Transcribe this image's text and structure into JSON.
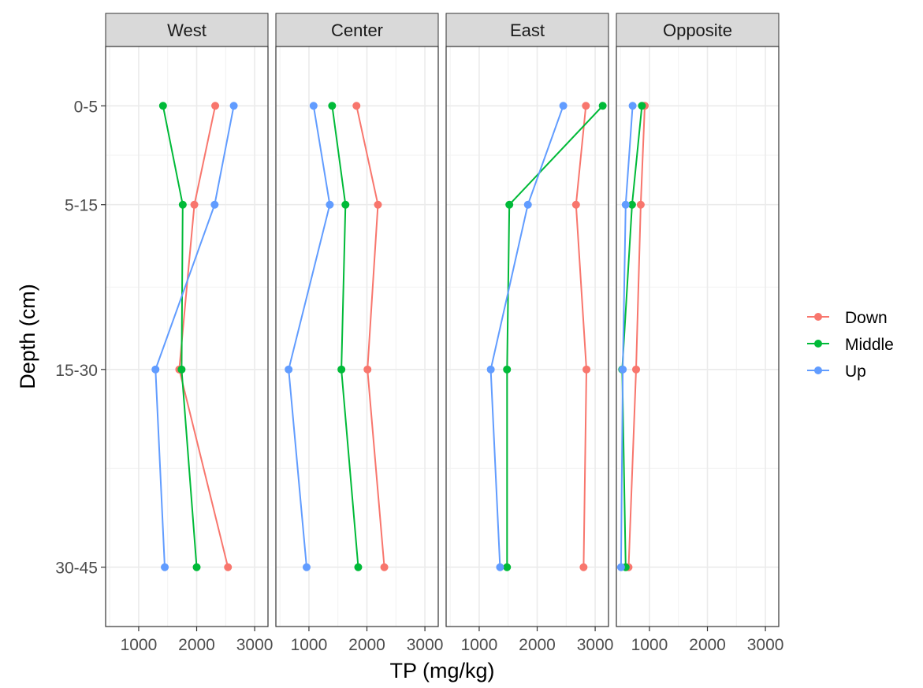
{
  "chart_data": {
    "type": "line",
    "xlabel": "TP (mg/kg)",
    "ylabel": "Depth (cm)",
    "xlim": [
      430,
      3230
    ],
    "x_ticks": [
      1000,
      2000,
      3000
    ],
    "x_tick_labels": [
      "1000",
      "2000",
      "3000"
    ],
    "depth_categories": [
      "0-5",
      "5-15",
      "15-30",
      "30-45"
    ],
    "depth_positions": [
      2.5,
      10,
      22.5,
      37.5
    ],
    "ylim": [
      -2,
      42
    ],
    "y_minor_gridlines": [
      6.25,
      16.25,
      30
    ],
    "grid": true,
    "legend_position": "right",
    "series_colors": {
      "Down": "#F8766D",
      "Middle": "#00BA38",
      "Up": "#619CFF"
    },
    "panels": [
      {
        "name": "West",
        "series": [
          {
            "name": "Down",
            "values": [
              2320,
              1960,
              1700,
              2540
            ]
          },
          {
            "name": "Middle",
            "values": [
              1420,
              1760,
              1740,
              2000
            ]
          },
          {
            "name": "Up",
            "values": [
              2640,
              2310,
              1290,
              1450
            ]
          }
        ]
      },
      {
        "name": "Center",
        "series": [
          {
            "name": "Down",
            "values": [
              1820,
              2190,
              2010,
              2300
            ]
          },
          {
            "name": "Middle",
            "values": [
              1400,
              1630,
              1560,
              1850
            ]
          },
          {
            "name": "Up",
            "values": [
              1080,
              1360,
              650,
              960
            ]
          }
        ]
      },
      {
        "name": "East",
        "series": [
          {
            "name": "Down",
            "values": [
              2840,
              2670,
              2850,
              2800
            ]
          },
          {
            "name": "Middle",
            "values": [
              3130,
              1520,
              1480,
              1480
            ]
          },
          {
            "name": "Up",
            "values": [
              2450,
              1840,
              1200,
              1360
            ]
          }
        ]
      },
      {
        "name": "Opposite",
        "series": [
          {
            "name": "Down",
            "values": [
              920,
              850,
              770,
              640
            ]
          },
          {
            "name": "Middle",
            "values": [
              870,
              700,
              530,
              590
            ]
          },
          {
            "name": "Up",
            "values": [
              710,
              590,
              540,
              510
            ]
          }
        ]
      }
    ]
  }
}
